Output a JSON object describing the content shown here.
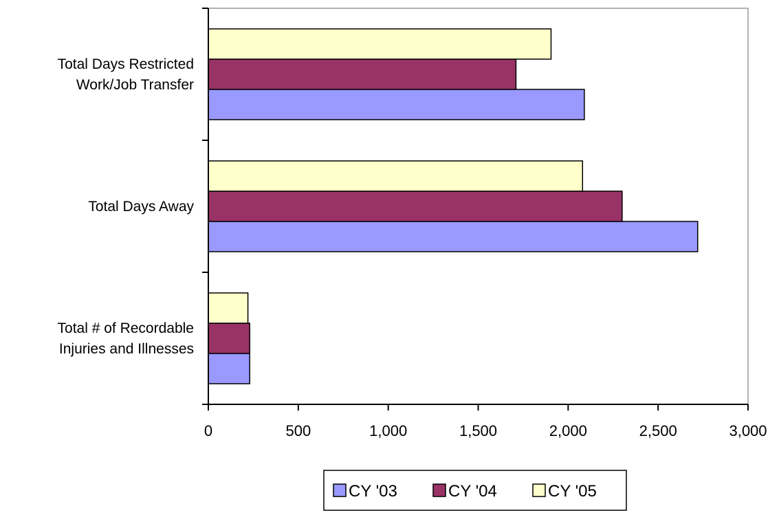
{
  "chart_data": {
    "type": "bar",
    "orientation": "horizontal",
    "categories": [
      [
        "Total Days Restricted",
        "Work/Job Transfer"
      ],
      [
        "Total Days Away"
      ],
      [
        "Total # of Recordable",
        "Injuries and Illnesses"
      ]
    ],
    "series": [
      {
        "name": "CY '03",
        "color": "#9999ff",
        "values": [
          2090,
          2720,
          230
        ]
      },
      {
        "name": "CY '04",
        "color": "#993366",
        "values": [
          1710,
          2300,
          230
        ]
      },
      {
        "name": "CY '05",
        "color": "#ffffcc",
        "values": [
          1905,
          2080,
          220
        ]
      }
    ],
    "xlim": [
      0,
      3000
    ],
    "xticks": [
      0,
      500,
      1000,
      1500,
      2000,
      2500,
      3000
    ],
    "xtick_labels": [
      "0",
      "500",
      "1,000",
      "1,500",
      "2,000",
      "2,500",
      "3,000"
    ],
    "title": "",
    "xlabel": "",
    "ylabel": "",
    "grid": false,
    "legend": "bottom"
  }
}
